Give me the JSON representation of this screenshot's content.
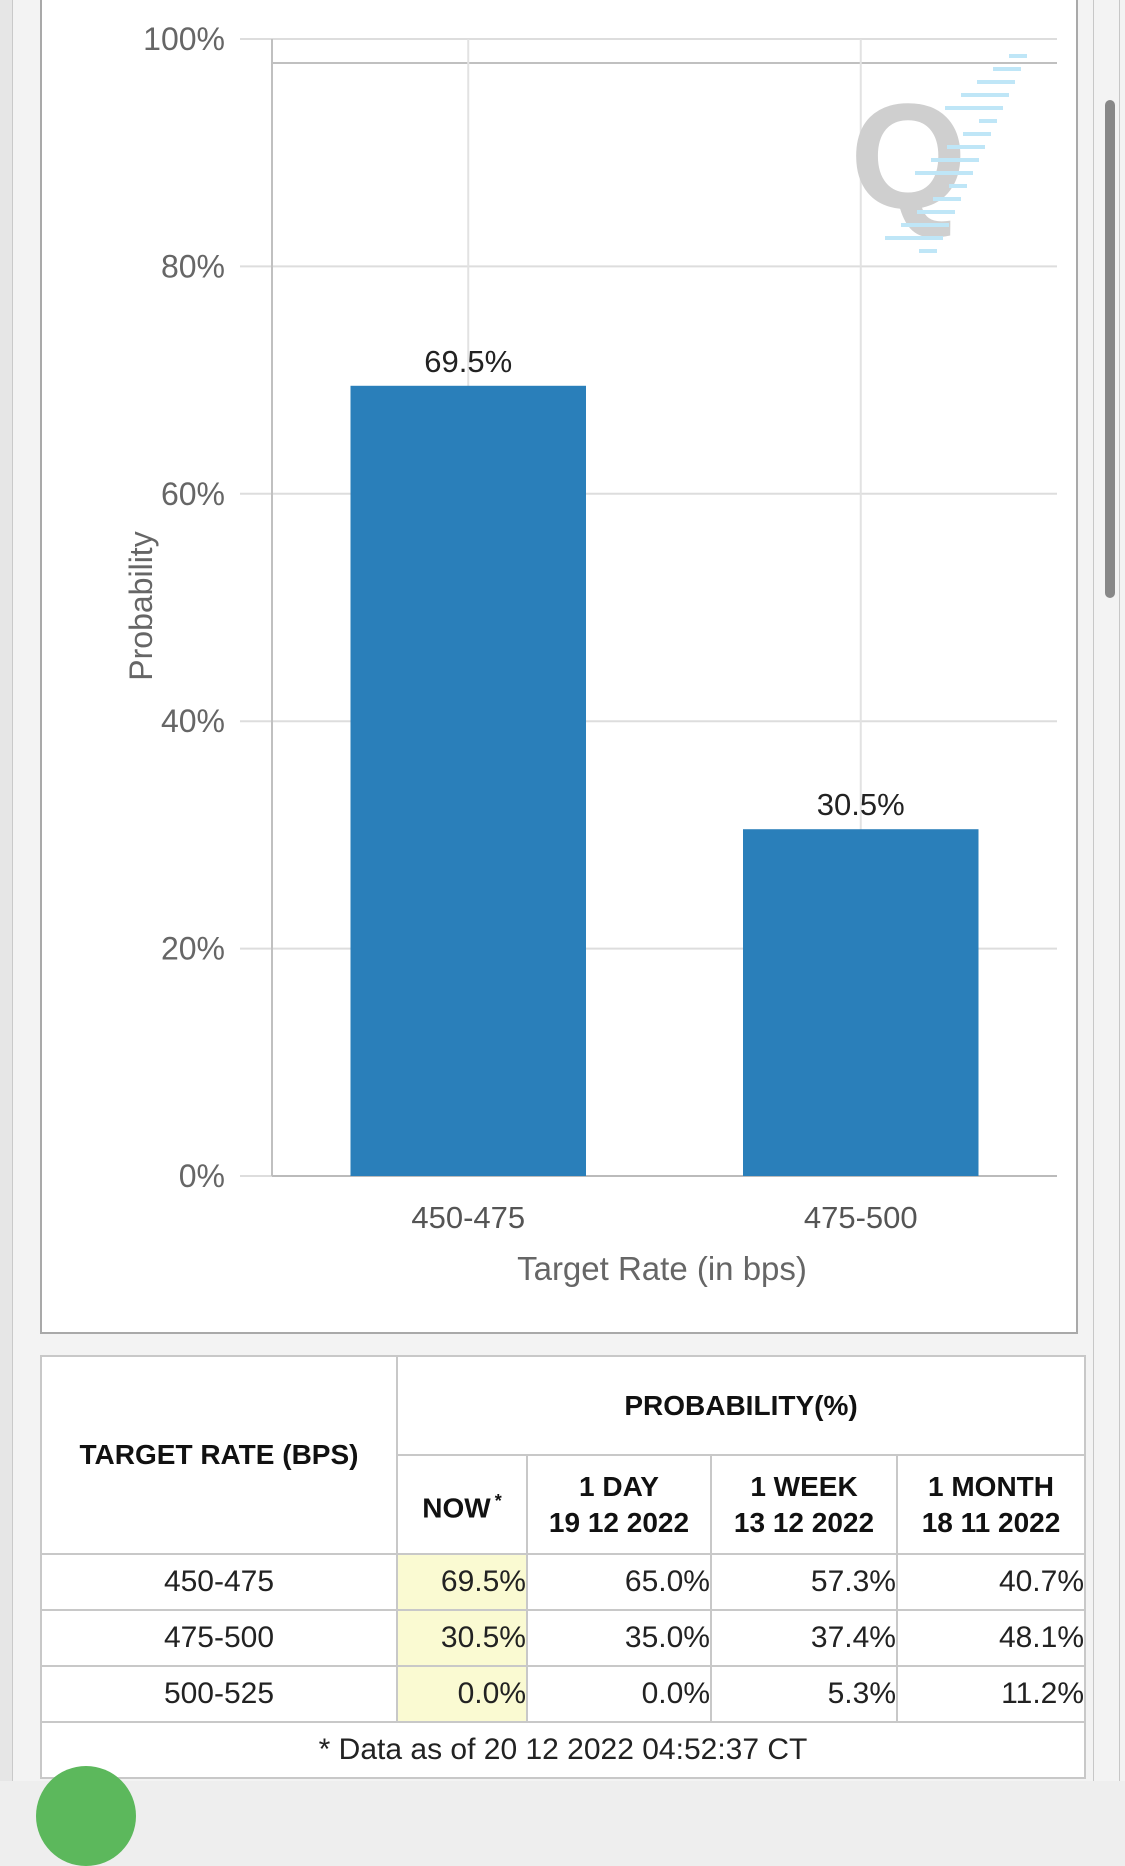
{
  "chart_data": {
    "type": "bar",
    "categories": [
      "450-475",
      "475-500"
    ],
    "values": [
      69.5,
      30.5
    ],
    "data_labels": [
      "69.5%",
      "30.5%"
    ],
    "xlabel": "Target Rate (in bps)",
    "ylabel": "Probability",
    "ylim": [
      0,
      100
    ],
    "yticks": [
      0,
      20,
      40,
      60,
      80,
      100
    ],
    "ytick_labels": [
      "0%",
      "20%",
      "40%",
      "60%",
      "80%",
      "100%"
    ],
    "grid": true,
    "bar_color": "#2a7fba",
    "watermark_color": "#cccccc"
  },
  "table": {
    "col_target": "TARGET RATE (BPS)",
    "col_probability": "PROBABILITY(%)",
    "sub_now": "NOW",
    "sub_now_mark": "*",
    "sub_1day_line1": "1 DAY",
    "sub_1day_line2": "19 12 2022",
    "sub_1week_line1": "1 WEEK",
    "sub_1week_line2": "13 12 2022",
    "sub_1month_line1": "1 MONTH",
    "sub_1month_line2": "18 11 2022",
    "rows": [
      {
        "rate": "450-475",
        "now": "69.5%",
        "day": "65.0%",
        "week": "57.3%",
        "month": "40.7%"
      },
      {
        "rate": "475-500",
        "now": "30.5%",
        "day": "35.0%",
        "week": "37.4%",
        "month": "48.1%"
      },
      {
        "rate": "500-525",
        "now": "0.0%",
        "day": "0.0%",
        "week": "5.3%",
        "month": "11.2%"
      }
    ],
    "footnote": "* Data as of 20 12 2022 04:52:37 CT",
    "now_highlight_color": "#fafad2"
  }
}
